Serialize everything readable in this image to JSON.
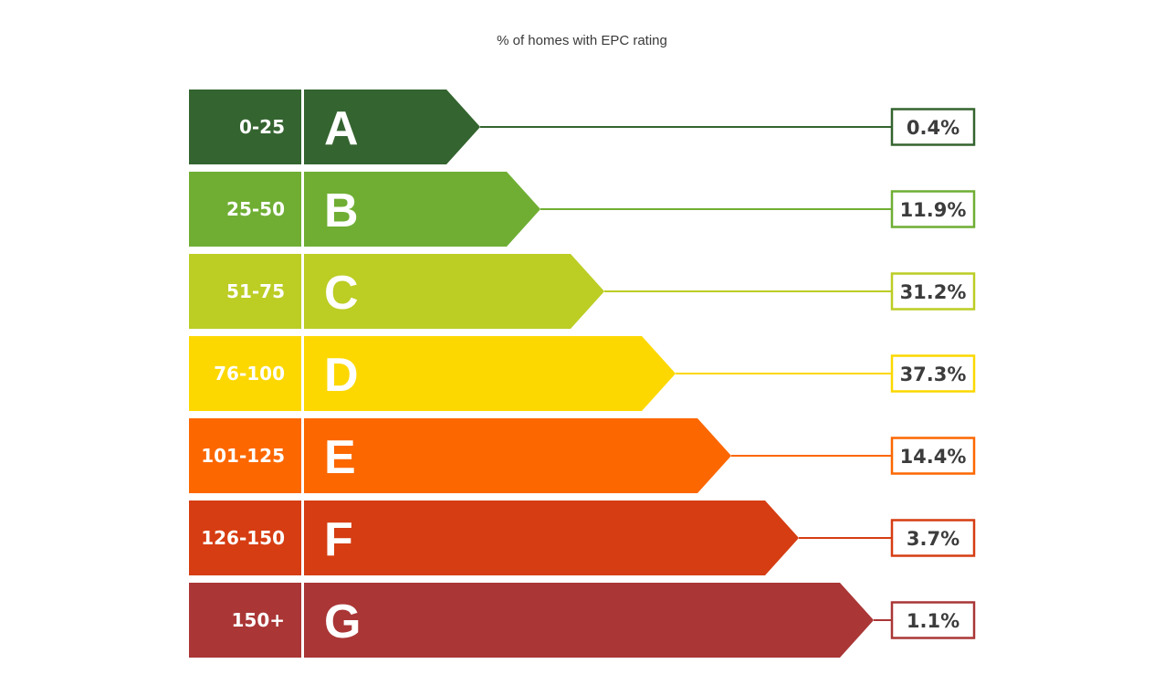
{
  "chart_data": {
    "type": "bar",
    "title": "% of homes with EPC rating",
    "categories": [
      "A",
      "B",
      "C",
      "D",
      "E",
      "F",
      "G"
    ],
    "ranges": [
      "0-25",
      "25-50",
      "51-75",
      "76-100",
      "101-125",
      "126-150",
      "150+"
    ],
    "values": [
      0.4,
      11.9,
      31.2,
      37.3,
      14.4,
      3.7,
      1.1
    ],
    "value_labels": [
      "0.4%",
      "11.9%",
      "31.2%",
      "37.3%",
      "14.4%",
      "3.7%",
      "1.1%"
    ],
    "colors": [
      "#34642f",
      "#6fae33",
      "#bccd24",
      "#fcd800",
      "#fc6700",
      "#d63d12",
      "#aa3636"
    ],
    "text_colors": {
      "range": "#ffffff",
      "letter": "#ffffff",
      "value": "#3c3c3c"
    }
  }
}
